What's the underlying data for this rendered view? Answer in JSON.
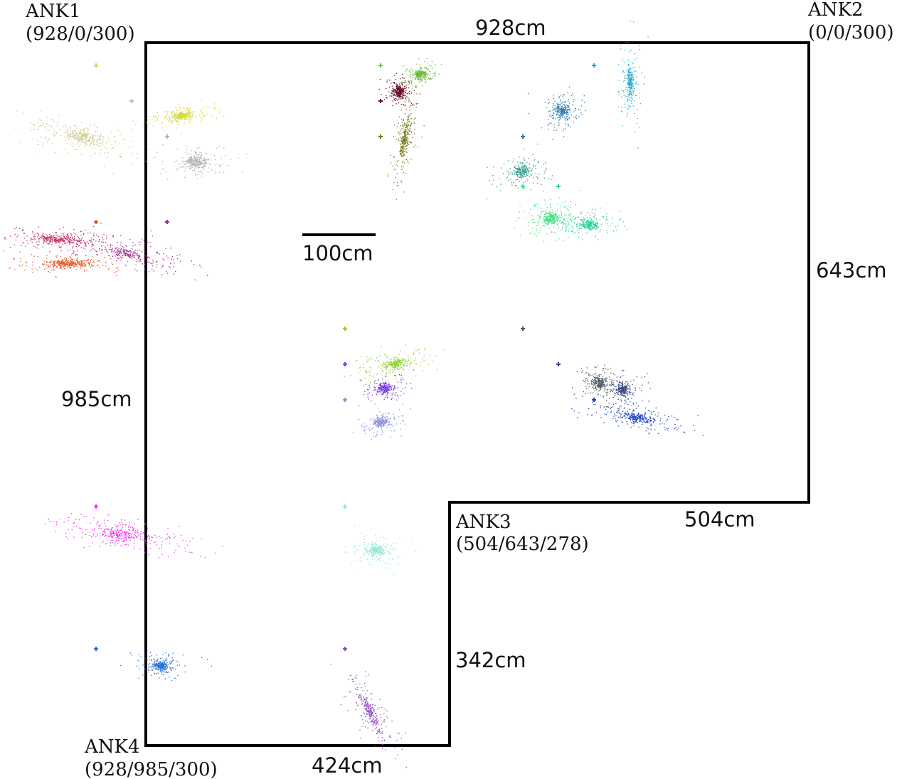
{
  "room": {
    "dimensions": {
      "top": "928cm",
      "right": "643cm",
      "left": "985cm",
      "step": "504cm",
      "inner": "342cm",
      "bottom": "424cm"
    },
    "scale_label": "100cm"
  },
  "anchors": [
    {
      "name": "ANK1",
      "coords": "(928/0/300)"
    },
    {
      "name": "ANK2",
      "coords": "(0/0/300)"
    },
    {
      "name": "ANK3",
      "coords": "(504/643/278)"
    },
    {
      "name": "ANK4",
      "coords": "(928/985/300)"
    }
  ],
  "clusters": [
    {
      "color": "#d9d93a",
      "sx": 26,
      "sy": 7,
      "angle": -10,
      "n": 360,
      "tail": 0.4
    },
    {
      "color": "#c8c88a",
      "sx": 40,
      "sy": 12,
      "angle": 12,
      "n": 380,
      "tail": 0.55
    },
    {
      "color": "#b0b0b0",
      "sx": 26,
      "sy": 14,
      "angle": 0,
      "n": 320,
      "tail": 0.35
    },
    {
      "color": "#c8326a",
      "sx": 55,
      "sy": 8,
      "angle": 2,
      "n": 420,
      "tail": 0.5
    },
    {
      "color": "#e65a2a",
      "sx": 50,
      "sy": 7,
      "angle": 0,
      "n": 420,
      "tail": 0.4
    },
    {
      "color": "#9a2a8a",
      "sx": 55,
      "sy": 9,
      "angle": 10,
      "n": 300,
      "tail": 0.6
    },
    {
      "color": "#70c040",
      "sx": 14,
      "sy": 10,
      "angle": -20,
      "n": 300,
      "tail": 0.3
    },
    {
      "color": "#6a0a2a",
      "sx": 14,
      "sy": 12,
      "angle": 0,
      "n": 320,
      "tail": 0.3
    },
    {
      "color": "#7a7a1a",
      "sx": 8,
      "sy": 35,
      "angle": 10,
      "n": 340,
      "tail": 0.4
    },
    {
      "color": "#20b0d0",
      "sx": 8,
      "sy": 28,
      "angle": 0,
      "n": 300,
      "tail": 0.4
    },
    {
      "color": "#2a7ab0",
      "sx": 16,
      "sy": 14,
      "angle": -20,
      "n": 300,
      "tail": 0.4
    },
    {
      "color": "#3a9a8a",
      "sx": 20,
      "sy": 12,
      "angle": -10,
      "n": 280,
      "tail": 0.45
    },
    {
      "color": "#40e080",
      "sx": 22,
      "sy": 12,
      "angle": -5,
      "n": 340,
      "tail": 0.45
    },
    {
      "color": "#30d0a0",
      "sx": 22,
      "sy": 10,
      "angle": 0,
      "n": 300,
      "tail": 0.4
    },
    {
      "color": "#90d030",
      "sx": 28,
      "sy": 9,
      "angle": -10,
      "n": 300,
      "tail": 0.45
    },
    {
      "color": "#7a3ae0",
      "sx": 18,
      "sy": 10,
      "angle": 0,
      "n": 300,
      "tail": 0.4
    },
    {
      "color": "#9090e0",
      "sx": 18,
      "sy": 9,
      "angle": -5,
      "n": 280,
      "tail": 0.4
    },
    {
      "color": "#505a60",
      "sx": 16,
      "sy": 12,
      "angle": 20,
      "n": 300,
      "tail": 0.4
    },
    {
      "color": "#3a4a80",
      "sx": 14,
      "sy": 11,
      "angle": 10,
      "n": 280,
      "tail": 0.4
    },
    {
      "color": "#2040c0",
      "sx": 36,
      "sy": 9,
      "angle": 12,
      "n": 340,
      "tail": 0.45
    },
    {
      "color": "#f030f0",
      "sx": 50,
      "sy": 10,
      "angle": 8,
      "n": 380,
      "tail": 0.65
    },
    {
      "color": "#90e8d0",
      "sx": 22,
      "sy": 12,
      "angle": 10,
      "n": 300,
      "tail": 0.4
    },
    {
      "color": "#2070d8",
      "sx": 20,
      "sy": 9,
      "angle": 0,
      "n": 300,
      "tail": 0.35
    },
    {
      "color": "#9050c0",
      "sx": 12,
      "sy": 36,
      "angle": -30,
      "n": 320,
      "tail": 0.4
    }
  ]
}
